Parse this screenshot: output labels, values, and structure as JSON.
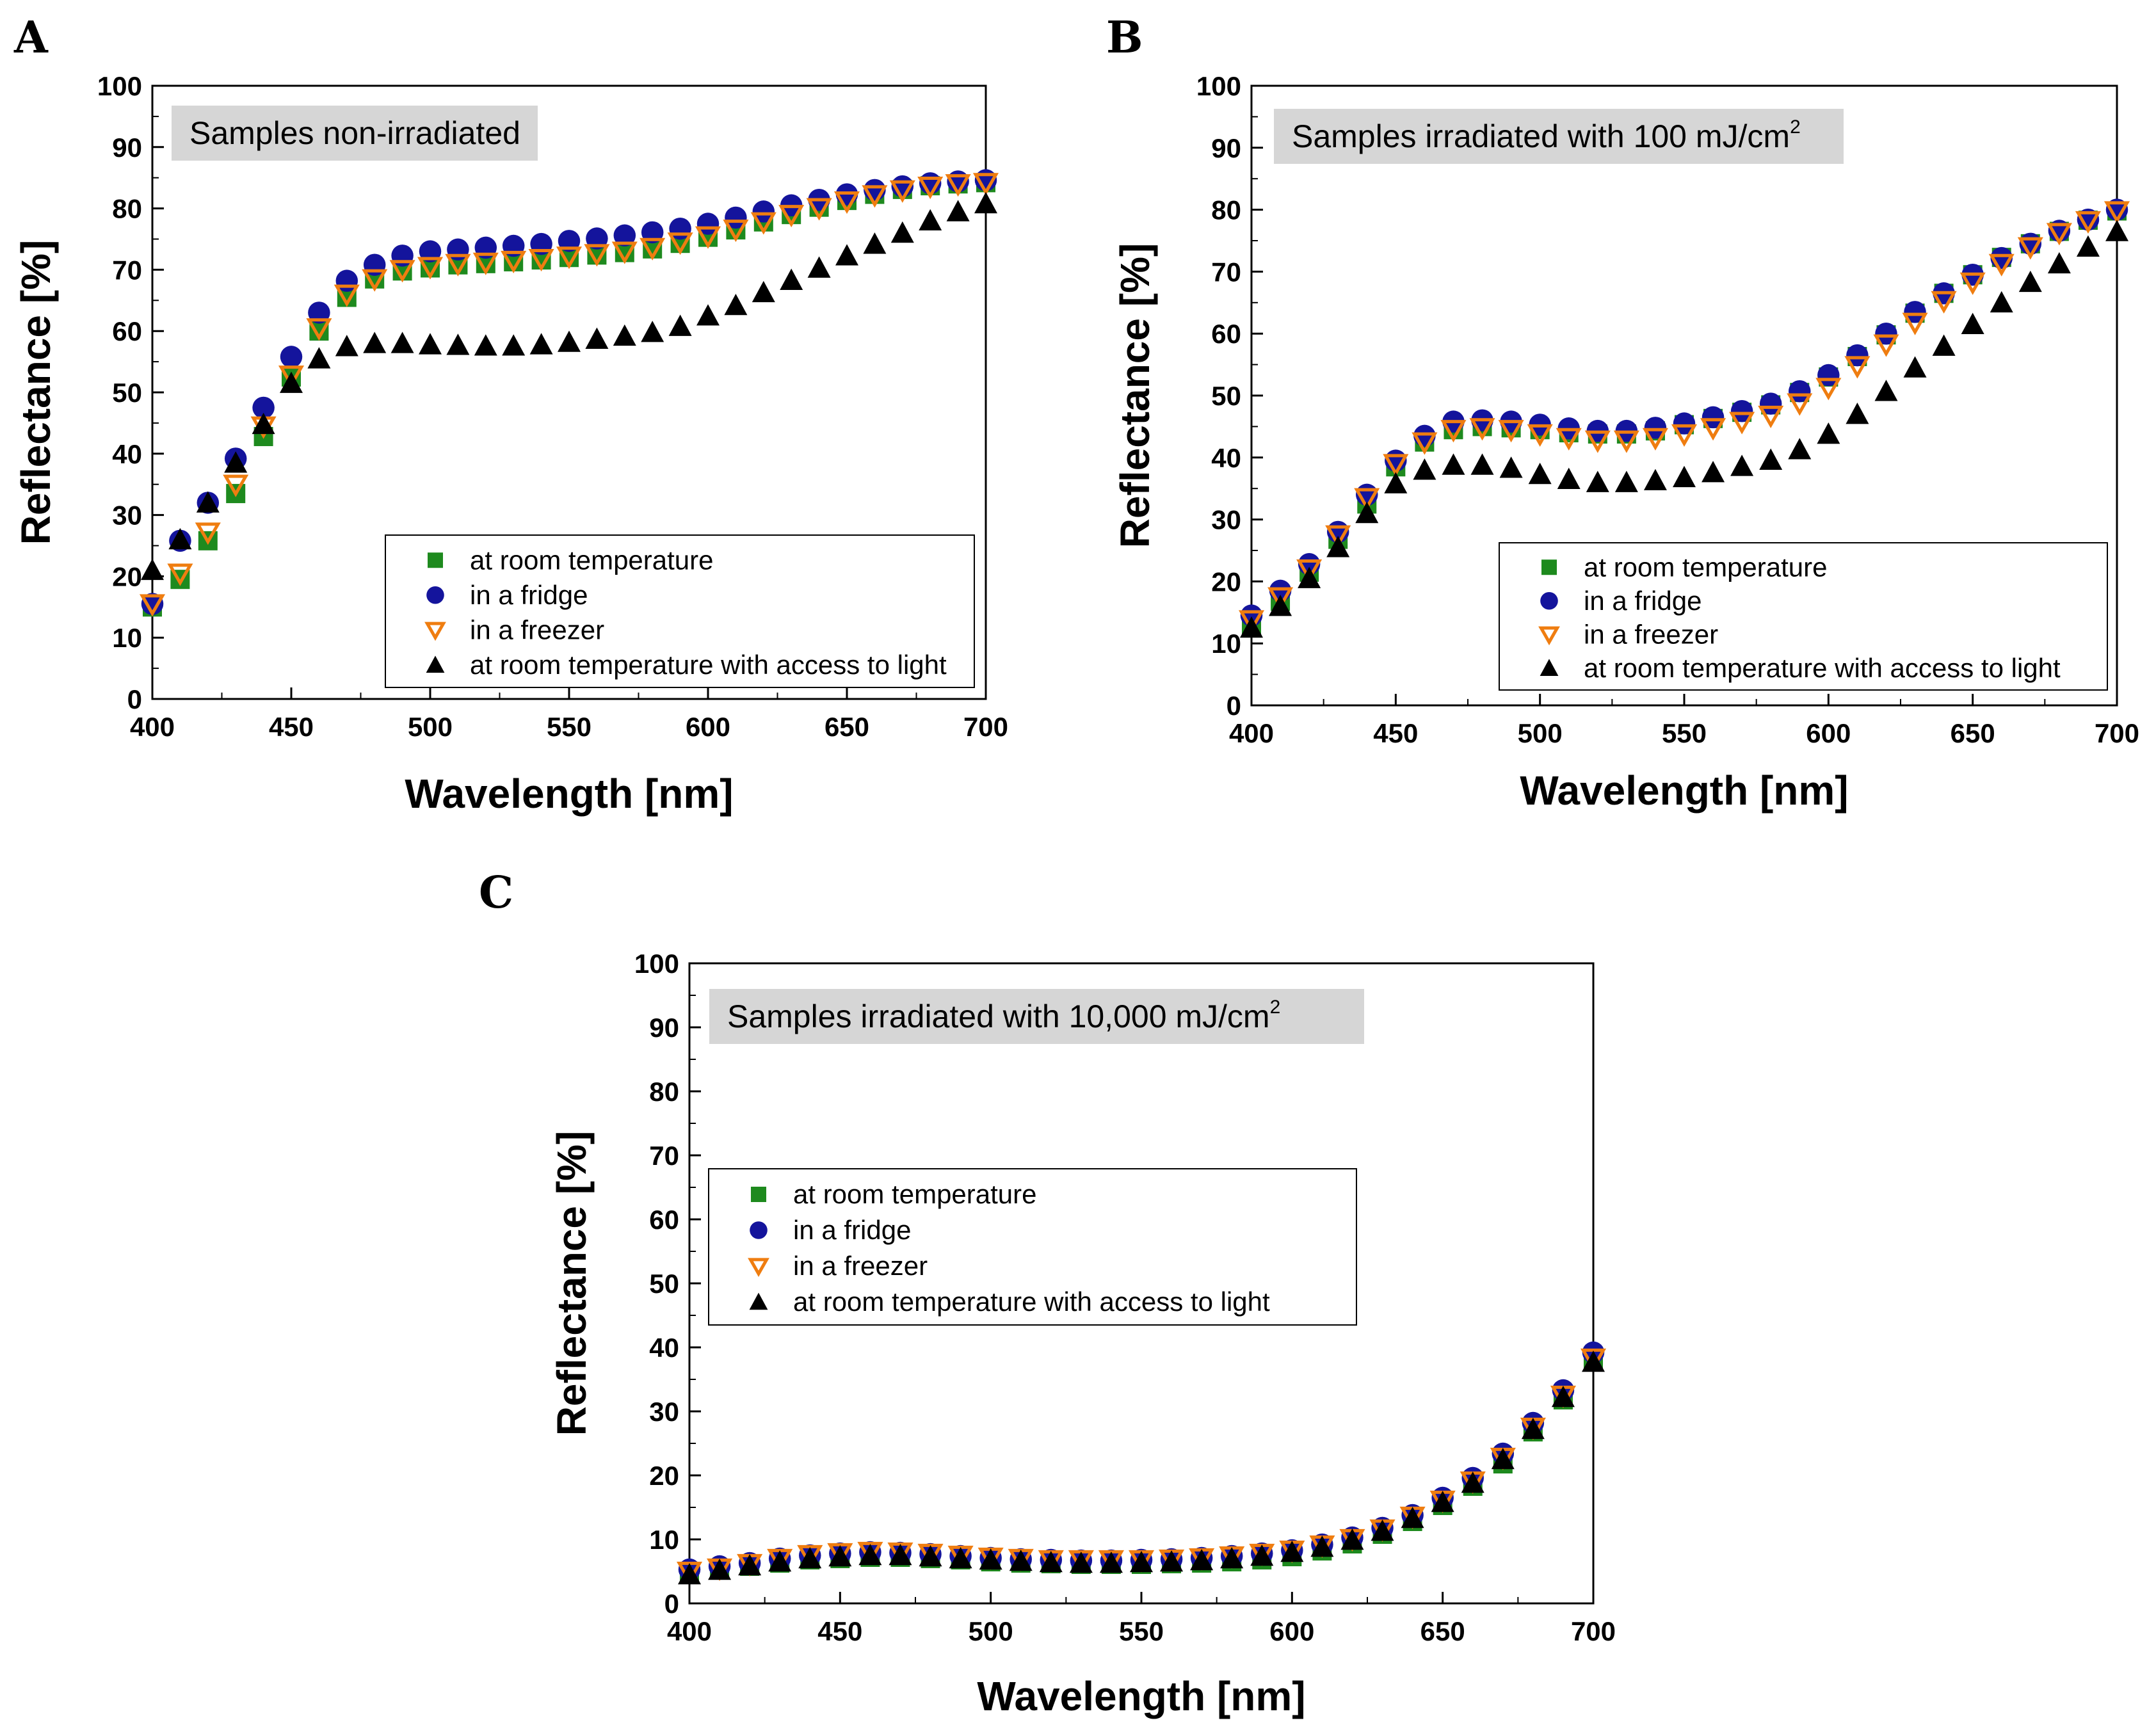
{
  "colors": {
    "room": "#1e8a1e",
    "fridge": "#14149c",
    "freezer": "#ef7d10",
    "light": "#000000",
    "banner": "#d6d6d6"
  },
  "legend_labels": [
    "at room temperature",
    "in a fridge",
    "in a freezer",
    "at room temperature with access to light"
  ],
  "chart_data": [
    {
      "panel": "A",
      "type": "scatter",
      "title": "Samples non-irradiated",
      "title_sup": "",
      "xlabel": "Wavelength [nm]",
      "ylabel": "Reflectance [%]",
      "xlim": [
        400,
        700
      ],
      "ylim": [
        0,
        100
      ],
      "xticks": [
        400,
        450,
        500,
        550,
        600,
        650,
        700
      ],
      "yticks": [
        0,
        10,
        20,
        30,
        40,
        50,
        60,
        70,
        80,
        90,
        100
      ],
      "x": [
        400,
        410,
        420,
        430,
        440,
        450,
        460,
        470,
        480,
        490,
        500,
        510,
        520,
        530,
        540,
        550,
        560,
        570,
        580,
        590,
        600,
        610,
        620,
        630,
        640,
        650,
        660,
        670,
        680,
        690,
        700
      ],
      "series": [
        {
          "name": "at room temperature",
          "marker": "square",
          "values": [
            15,
            19.5,
            25.8,
            33.5,
            42.8,
            52.5,
            60,
            65.5,
            68.5,
            69.8,
            70.3,
            70.8,
            71,
            71.3,
            71.6,
            72,
            72.4,
            72.8,
            73.4,
            74.3,
            75.3,
            76.5,
            77.8,
            79,
            80.2,
            81.3,
            82.3,
            83.1,
            83.7,
            84,
            84.2
          ]
        },
        {
          "name": "in a fridge",
          "marker": "circle",
          "values": [
            15.5,
            25.8,
            32,
            39.2,
            47.5,
            55.8,
            63,
            68.2,
            70.8,
            72.3,
            73,
            73.3,
            73.6,
            73.9,
            74.2,
            74.7,
            75.1,
            75.6,
            76.1,
            76.7,
            77.5,
            78.5,
            79.5,
            80.5,
            81.4,
            82.3,
            83,
            83.6,
            84.1,
            84.4,
            84.6
          ]
        },
        {
          "name": "in a freezer",
          "marker": "triangle-down",
          "values": [
            15.5,
            20.5,
            27.2,
            35,
            44.5,
            52.8,
            60.5,
            66,
            68.5,
            70,
            70.5,
            71,
            71.2,
            71.5,
            71.8,
            72.2,
            72.6,
            73,
            73.6,
            74.5,
            75.5,
            76.6,
            77.8,
            79,
            80.1,
            81.2,
            82.2,
            83,
            83.6,
            84,
            84.2
          ]
        },
        {
          "name": "at room temperature with access to light",
          "marker": "triangle-up",
          "values": [
            21,
            26,
            32,
            38.5,
            44.8,
            51.5,
            55.5,
            57.5,
            58,
            58,
            57.8,
            57.7,
            57.6,
            57.6,
            57.8,
            58.2,
            58.7,
            59.2,
            59.8,
            60.8,
            62.5,
            64.2,
            66.3,
            68.3,
            70.3,
            72.3,
            74.2,
            76,
            78,
            79.5,
            80.8
          ]
        }
      ],
      "legend_position": "bottom-right"
    },
    {
      "panel": "B",
      "type": "scatter",
      "title": "Samples irradiated with 100 mJ/cm",
      "title_sup": "2",
      "xlabel": "Wavelength [nm]",
      "ylabel": "Reflectance [%]",
      "xlim": [
        400,
        700
      ],
      "ylim": [
        0,
        100
      ],
      "xticks": [
        400,
        450,
        500,
        550,
        600,
        650,
        700
      ],
      "yticks": [
        0,
        10,
        20,
        30,
        40,
        50,
        60,
        70,
        80,
        90,
        100
      ],
      "x": [
        400,
        410,
        420,
        430,
        440,
        450,
        460,
        470,
        480,
        490,
        500,
        510,
        520,
        530,
        540,
        550,
        560,
        570,
        580,
        590,
        600,
        610,
        620,
        630,
        640,
        650,
        660,
        670,
        680,
        690,
        700
      ],
      "series": [
        {
          "name": "at room temperature",
          "marker": "square",
          "values": [
            13,
            16.8,
            21.5,
            26.8,
            32.5,
            38.5,
            42.5,
            44.5,
            45,
            44.8,
            44.5,
            44,
            43.8,
            43.8,
            44.3,
            45.3,
            46.3,
            47.3,
            48.5,
            50.5,
            53,
            56.3,
            59.8,
            63.3,
            66.5,
            69.5,
            72.3,
            74.5,
            76.5,
            78.3,
            79.8
          ]
        },
        {
          "name": "in a fridge",
          "marker": "circle",
          "values": [
            14.5,
            18.5,
            22.8,
            28,
            34,
            39.5,
            43.5,
            45.8,
            46,
            45.8,
            45.3,
            44.7,
            44.3,
            44.3,
            44.8,
            45.5,
            46.5,
            47.5,
            48.7,
            50.7,
            53.3,
            56.5,
            60,
            63.5,
            66.5,
            69.5,
            72.2,
            74.5,
            76.6,
            78.4,
            80
          ]
        },
        {
          "name": "in a freezer",
          "marker": "triangle-down",
          "values": [
            13.8,
            17.5,
            22,
            27.5,
            33.5,
            39,
            42.5,
            44.5,
            44.8,
            44.5,
            43.8,
            43.2,
            42.8,
            42.8,
            43.2,
            43.8,
            44.8,
            45.8,
            46.8,
            48.8,
            51.3,
            54.8,
            58.3,
            61.8,
            65.3,
            68.3,
            71.3,
            74,
            76.3,
            78.2,
            79.8
          ]
        },
        {
          "name": "at room temperature with access to light",
          "marker": "triangle-up",
          "values": [
            12.5,
            16,
            20.5,
            25.5,
            31,
            35.8,
            38,
            38.8,
            38.8,
            38.3,
            37.3,
            36.5,
            36,
            36,
            36.3,
            36.8,
            37.6,
            38.6,
            39.6,
            41.3,
            43.8,
            47,
            50.7,
            54.5,
            58,
            61.5,
            65,
            68.3,
            71.3,
            74,
            76.5
          ]
        }
      ],
      "legend_position": "bottom-right"
    },
    {
      "panel": "C",
      "type": "scatter",
      "title": "Samples irradiated with 10,000 mJ/cm",
      "title_sup": "2",
      "xlabel": "Wavelength [nm]",
      "ylabel": "Reflectance [%]",
      "xlim": [
        400,
        700
      ],
      "ylim": [
        0,
        100
      ],
      "xticks": [
        400,
        450,
        500,
        550,
        600,
        650,
        700
      ],
      "yticks": [
        0,
        10,
        20,
        30,
        40,
        50,
        60,
        70,
        80,
        90,
        100
      ],
      "x": [
        400,
        410,
        420,
        430,
        440,
        450,
        460,
        470,
        480,
        490,
        500,
        510,
        520,
        530,
        540,
        550,
        560,
        570,
        580,
        590,
        600,
        610,
        620,
        630,
        640,
        650,
        660,
        670,
        680,
        690,
        700
      ],
      "series": [
        {
          "name": "at room temperature",
          "marker": "square",
          "values": [
            4.8,
            5.2,
            5.8,
            6.3,
            6.8,
            7,
            7.2,
            7.2,
            7,
            6.8,
            6.5,
            6.3,
            6.2,
            6.1,
            6.1,
            6.1,
            6.2,
            6.3,
            6.5,
            6.8,
            7.3,
            8.2,
            9.3,
            10.8,
            12.8,
            15.3,
            18.3,
            21.8,
            26.8,
            31.8,
            37.8
          ]
        },
        {
          "name": "in a fridge",
          "marker": "circle",
          "values": [
            5.3,
            5.8,
            6.3,
            7,
            7.5,
            7.8,
            8,
            7.9,
            7.7,
            7.4,
            7.1,
            6.9,
            6.8,
            6.7,
            6.7,
            6.8,
            6.9,
            7.1,
            7.4,
            7.8,
            8.3,
            9.2,
            10.3,
            11.8,
            13.8,
            16.5,
            19.6,
            23.4,
            28.2,
            33.3,
            39.2
          ]
        },
        {
          "name": "in a freezer",
          "marker": "triangle-down",
          "values": [
            5,
            5.5,
            6.2,
            7,
            7.6,
            7.9,
            8.1,
            8,
            7.8,
            7.5,
            7.2,
            7,
            6.8,
            6.8,
            6.8,
            6.8,
            6.9,
            7.1,
            7.4,
            7.8,
            8.3,
            9.1,
            10.1,
            11.6,
            13.6,
            16.1,
            19.1,
            22.8,
            27.5,
            32.5,
            38.3
          ]
        },
        {
          "name": "at room temperature with access to light",
          "marker": "triangle-up",
          "values": [
            4.5,
            5.2,
            5.9,
            6.5,
            7,
            7.3,
            7.5,
            7.5,
            7.3,
            7,
            6.8,
            6.6,
            6.4,
            6.3,
            6.3,
            6.4,
            6.5,
            6.7,
            7,
            7.4,
            8,
            8.8,
            9.9,
            11.3,
            13.3,
            15.8,
            18.8,
            22.5,
            27.2,
            32.2,
            37.7
          ]
        }
      ],
      "legend_position": "center-left"
    }
  ]
}
